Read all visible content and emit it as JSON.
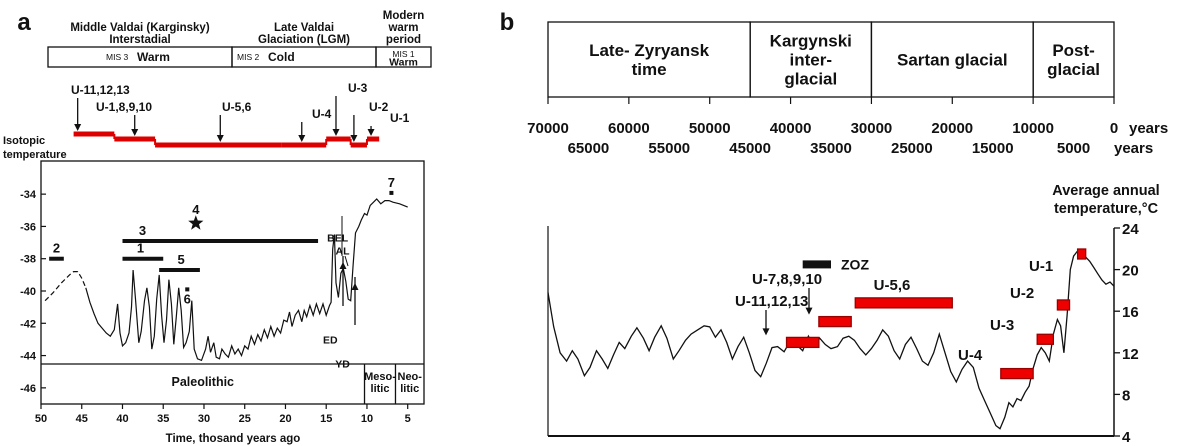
{
  "chart_data": [
    {
      "type": "line",
      "panel_label": "a",
      "periods": [
        {
          "label_lines": [
            "Middle Valdai (Karginsky)",
            "Interstadial"
          ],
          "mis": "MIS 3",
          "climate": "Warm"
        },
        {
          "label_lines": [
            "Late Valdai",
            "Glaciation (LGM)"
          ],
          "mis": "MIS 2",
          "climate": "Cold"
        },
        {
          "label_lines": [
            "Modern",
            "warm",
            "period"
          ],
          "mis": "MIS 1",
          "climate": "Warm"
        }
      ],
      "samples": [
        {
          "label": "U-11,12,13",
          "x": 45.5
        },
        {
          "label": "U-1,8,9,10",
          "x": 38.5
        },
        {
          "label": "U-5,6",
          "x": 28
        },
        {
          "label": "U-4",
          "x": 18
        },
        {
          "label": "U-3",
          "x": 13.8
        },
        {
          "label": "U-2",
          "x": 11.6
        },
        {
          "label": "U-1",
          "x": 9.5
        }
      ],
      "sample_bars": [
        {
          "from": 46,
          "to": 41
        },
        {
          "from": 41,
          "to": 36
        },
        {
          "from": 36,
          "to": 20.5
        },
        {
          "from": 20.5,
          "to": 15
        },
        {
          "from": 15,
          "to": 12
        },
        {
          "from": 12,
          "to": 10
        },
        {
          "from": 10,
          "to": 8.5
        }
      ],
      "ylabel_lines": [
        "Isotopic",
        "temperature"
      ],
      "xlabel": "Time, thosand  years ago",
      "x_ticks": [
        50,
        45,
        40,
        35,
        30,
        25,
        20,
        15,
        10,
        5
      ],
      "y_ticks": [
        -34,
        -36,
        -38,
        -40,
        -42,
        -44,
        -46
      ],
      "xlim": [
        50,
        3
      ],
      "ylim": [
        -47,
        -33
      ],
      "curve_dashed": [
        [
          49.5,
          -40.6
        ],
        [
          48.5,
          -40.1
        ],
        [
          47.5,
          -39.5
        ],
        [
          46.5,
          -39
        ],
        [
          46,
          -38.8
        ],
        [
          45.5,
          -38.8
        ],
        [
          45,
          -39.2
        ],
        [
          44.5,
          -39.8
        ]
      ],
      "curve": [
        [
          44.5,
          -39.8
        ],
        [
          44,
          -40.7
        ],
        [
          43.5,
          -41.4
        ],
        [
          43,
          -42
        ],
        [
          42.5,
          -42.3
        ],
        [
          42,
          -42.6
        ],
        [
          41.5,
          -42.8
        ],
        [
          41,
          -42.4
        ],
        [
          40.6,
          -40.8
        ],
        [
          40.3,
          -42.6
        ],
        [
          40,
          -43.4
        ],
        [
          39.6,
          -43.2
        ],
        [
          39.2,
          -42.6
        ],
        [
          38.9,
          -41
        ],
        [
          38.7,
          -38.7
        ],
        [
          38.4,
          -40.5
        ],
        [
          38,
          -43.2
        ],
        [
          37.7,
          -42.5
        ],
        [
          37.3,
          -40.6
        ],
        [
          37,
          -39.8
        ],
        [
          36.7,
          -41
        ],
        [
          36.4,
          -43.6
        ],
        [
          36.1,
          -42.8
        ],
        [
          35.8,
          -40.5
        ],
        [
          35.5,
          -39
        ],
        [
          35.2,
          -41.5
        ],
        [
          34.9,
          -43.2
        ],
        [
          34.6,
          -41.8
        ],
        [
          34.3,
          -39.3
        ],
        [
          34,
          -40.8
        ],
        [
          33.7,
          -43.3
        ],
        [
          33.4,
          -41.6
        ],
        [
          33.1,
          -39.8
        ],
        [
          32.8,
          -41.2
        ],
        [
          32.5,
          -43.5
        ],
        [
          32.2,
          -43.2
        ],
        [
          31.8,
          -42.5
        ],
        [
          31.5,
          -40.6
        ],
        [
          31.2,
          -43.6
        ],
        [
          30.8,
          -44.2
        ],
        [
          30.3,
          -44.3
        ],
        [
          29.8,
          -43.6
        ],
        [
          29.5,
          -42.8
        ],
        [
          29.2,
          -43.8
        ],
        [
          28.8,
          -43.2
        ],
        [
          28.5,
          -44.1
        ],
        [
          28.1,
          -44.2
        ],
        [
          27.8,
          -43.6
        ],
        [
          27.4,
          -43.9
        ],
        [
          27,
          -44.1
        ],
        [
          26.6,
          -43.4
        ],
        [
          26.2,
          -43.9
        ],
        [
          25.8,
          -43.6
        ],
        [
          25.4,
          -44
        ],
        [
          25,
          -43.4
        ],
        [
          24.6,
          -43.6
        ],
        [
          24.2,
          -42.8
        ],
        [
          23.8,
          -43.3
        ],
        [
          23.4,
          -42.7
        ],
        [
          23,
          -43.1
        ],
        [
          22.6,
          -42.4
        ],
        [
          22.2,
          -42.9
        ],
        [
          21.8,
          -42.2
        ],
        [
          21.4,
          -42.8
        ],
        [
          21,
          -42.3
        ],
        [
          20.6,
          -42.6
        ],
        [
          20.2,
          -41.8
        ],
        [
          19.8,
          -41.9
        ],
        [
          19.5,
          -41.3
        ],
        [
          19.2,
          -42.2
        ],
        [
          18.8,
          -41.5
        ],
        [
          18.4,
          -41.2
        ],
        [
          18,
          -41.9
        ],
        [
          17.7,
          -41.2
        ],
        [
          17.4,
          -41.6
        ],
        [
          17,
          -40.9
        ],
        [
          16.6,
          -41.5
        ],
        [
          16.2,
          -40.8
        ],
        [
          15.8,
          -41.4
        ],
        [
          15.4,
          -40.8
        ],
        [
          15,
          -41.5
        ],
        [
          14.6,
          -40.9
        ],
        [
          14.4,
          -40.7
        ],
        [
          14.2,
          -37.4
        ],
        [
          14,
          -36.5
        ],
        [
          13.8,
          -39.5
        ],
        [
          13.5,
          -40.4
        ],
        [
          13.2,
          -38.9
        ],
        [
          12.9,
          -38.6
        ],
        [
          12.6,
          -39.4
        ],
        [
          12.3,
          -40.5
        ],
        [
          12,
          -40.6
        ],
        [
          11.7,
          -38.4
        ],
        [
          11.4,
          -36.4
        ],
        [
          11,
          -36
        ],
        [
          10.7,
          -35.6
        ],
        [
          10.3,
          -35.2
        ],
        [
          10,
          -35.3
        ],
        [
          9.6,
          -34.7
        ],
        [
          9.2,
          -34.5
        ],
        [
          8.8,
          -34.3
        ],
        [
          8.3,
          -34.6
        ],
        [
          7.8,
          -34.4
        ],
        [
          7.3,
          -34.4
        ],
        [
          6.8,
          -34.5
        ],
        [
          6,
          -34.6
        ],
        [
          5,
          -34.8
        ]
      ],
      "horizontal_bars": [
        {
          "label": "2",
          "from": 49,
          "to": 47.2,
          "y": -38
        },
        {
          "label": "1",
          "from": 40,
          "to": 35,
          "y": -38
        },
        {
          "label": "3",
          "from": 40,
          "to": 16,
          "y": -36.9
        },
        {
          "label": "5",
          "from": 35.5,
          "to": 30.5,
          "y": -38.7
        },
        {
          "label": "6",
          "from": 32.3,
          "to": 31.8,
          "y": -39.9
        }
      ],
      "star": {
        "label": "4",
        "x": 31,
        "y": -35.8
      },
      "point_7": {
        "label": "7",
        "x": 7,
        "y": -33.8
      },
      "annotations": [
        {
          "text": "BEL",
          "x": 13.6,
          "y": -36.7
        },
        {
          "text": "AL",
          "x": 13,
          "y": -37.5
        },
        {
          "text": "ED",
          "x": 14.5,
          "y": -43
        },
        {
          "text": "YD",
          "x": 13,
          "y": -44.5
        }
      ],
      "cultural_periods": [
        {
          "label_lines": [
            "Paleolithic"
          ],
          "from": 50,
          "to": 10.3
        },
        {
          "label_lines": [
            "Meso-",
            "litic"
          ],
          "from": 10.3,
          "to": 6.5
        },
        {
          "label_lines": [
            "Neo-",
            "litic"
          ],
          "from": 6.5,
          "to": 3
        }
      ]
    },
    {
      "type": "line",
      "panel_label": "b",
      "periods": [
        {
          "label_lines": [
            "Late- Zyryansk",
            "time"
          ],
          "from": 70000,
          "to": 45000
        },
        {
          "label_lines": [
            "Kargynski",
            "inter-",
            "glacial"
          ],
          "from": 45000,
          "to": 30000
        },
        {
          "label_lines": [
            "Sartan  glacial"
          ],
          "from": 30000,
          "to": 10000
        },
        {
          "label_lines": [
            "Post-",
            "glacial"
          ],
          "from": 10000,
          "to": 0
        }
      ],
      "x_ticks_major": [
        70000,
        60000,
        50000,
        40000,
        30000,
        20000,
        10000,
        0
      ],
      "x_ticks_minor": [
        65000,
        55000,
        45000,
        35000,
        25000,
        15000,
        5000
      ],
      "x_unit": "years",
      "xlim": [
        70000,
        0
      ],
      "ylabel_lines": [
        "Average annual",
        "temperature,°C"
      ],
      "y_ticks": [
        4,
        8,
        12,
        16,
        20,
        24
      ],
      "ylim": [
        4,
        24
      ],
      "curve": [
        [
          70000,
          17.8
        ],
        [
          69300,
          14.5
        ],
        [
          68500,
          12
        ],
        [
          67700,
          11.2
        ],
        [
          67000,
          12.2
        ],
        [
          66300,
          11.4
        ],
        [
          65500,
          9.8
        ],
        [
          64800,
          10.6
        ],
        [
          64000,
          12.2
        ],
        [
          63300,
          11.4
        ],
        [
          62600,
          10.5
        ],
        [
          61900,
          11.8
        ],
        [
          61200,
          13
        ],
        [
          60500,
          12.4
        ],
        [
          59700,
          13.6
        ],
        [
          59000,
          14.4
        ],
        [
          58200,
          13.4
        ],
        [
          57500,
          12.2
        ],
        [
          56800,
          13.5
        ],
        [
          56000,
          14.6
        ],
        [
          55300,
          13.4
        ],
        [
          54500,
          11.4
        ],
        [
          53800,
          12.2
        ],
        [
          53000,
          13.2
        ],
        [
          52300,
          13.8
        ],
        [
          51500,
          14.2
        ],
        [
          50700,
          14.6
        ],
        [
          50000,
          14.5
        ],
        [
          49300,
          13.5
        ],
        [
          48600,
          14.2
        ],
        [
          47900,
          13
        ],
        [
          47200,
          11.4
        ],
        [
          46500,
          12.6
        ],
        [
          45800,
          13.5
        ],
        [
          45100,
          12
        ],
        [
          44400,
          10.3
        ],
        [
          43700,
          9.7
        ],
        [
          43000,
          11
        ],
        [
          42300,
          12.5
        ],
        [
          41600,
          12.6
        ],
        [
          40800,
          12.1
        ],
        [
          40000,
          13.2
        ],
        [
          39300,
          12.8
        ],
        [
          38500,
          12.2
        ],
        [
          37800,
          13.6
        ],
        [
          37100,
          12.6
        ],
        [
          36400,
          13.4
        ],
        [
          35700,
          12.8
        ],
        [
          35000,
          12.4
        ],
        [
          34200,
          12.6
        ],
        [
          33500,
          13.4
        ],
        [
          32800,
          13.6
        ],
        [
          32100,
          13.2
        ],
        [
          31400,
          12.4
        ],
        [
          30700,
          11.8
        ],
        [
          30000,
          12.4
        ],
        [
          29300,
          13.2
        ],
        [
          28600,
          14.2
        ],
        [
          27900,
          13.6
        ],
        [
          27200,
          12.2
        ],
        [
          26500,
          11.4
        ],
        [
          25800,
          12.8
        ],
        [
          25100,
          13.5
        ],
        [
          24400,
          12.4
        ],
        [
          23700,
          11.2
        ],
        [
          23000,
          10.8
        ],
        [
          22300,
          12
        ],
        [
          21600,
          13.8
        ],
        [
          20900,
          12
        ],
        [
          20200,
          10.2
        ],
        [
          19500,
          9.2
        ],
        [
          18800,
          10.4
        ],
        [
          18100,
          11.2
        ],
        [
          17400,
          10.6
        ],
        [
          16700,
          8.6
        ],
        [
          16000,
          7.4
        ],
        [
          15300,
          6.2
        ],
        [
          14600,
          5
        ],
        [
          14100,
          4.7
        ],
        [
          13500,
          5.8
        ],
        [
          13000,
          7.2
        ],
        [
          12500,
          6.8
        ],
        [
          12000,
          7.6
        ],
        [
          11500,
          7.4
        ],
        [
          11000,
          8.2
        ],
        [
          10500,
          8.8
        ],
        [
          10000,
          10.5
        ],
        [
          9500,
          11.8
        ],
        [
          9000,
          12.5
        ],
        [
          8500,
          12
        ],
        [
          8000,
          11.2
        ],
        [
          7500,
          13.8
        ],
        [
          7000,
          15.2
        ],
        [
          6600,
          14.6
        ],
        [
          6200,
          12
        ],
        [
          5800,
          15.6
        ],
        [
          5400,
          20
        ],
        [
          5000,
          21.3
        ],
        [
          4500,
          21.8
        ],
        [
          4000,
          21.6
        ],
        [
          3500,
          21.2
        ],
        [
          3000,
          20.8
        ],
        [
          2500,
          20.2
        ],
        [
          2000,
          19.6
        ],
        [
          1500,
          19
        ],
        [
          1000,
          18.6
        ],
        [
          500,
          18.8
        ],
        [
          0,
          18.4
        ]
      ],
      "zoz": {
        "label": "ZOZ",
        "from": 38500,
        "to": 35000,
        "y": 20.5
      },
      "sample_bars": [
        {
          "label": "U-11,12,13",
          "from": 40500,
          "to": 36500,
          "y": 13
        },
        {
          "label": "U-7,8,9,10",
          "from": 36500,
          "to": 32500,
          "y": 15
        },
        {
          "label": "U-5,6",
          "from": 32000,
          "to": 20000,
          "y": 16.8
        },
        {
          "label": "U-4",
          "from": 14000,
          "to": 10000,
          "y": 10
        },
        {
          "label": "U-3",
          "from": 9500,
          "to": 7500,
          "y": 13.3
        },
        {
          "label": "U-2",
          "from": 7000,
          "to": 5500,
          "y": 16.6
        },
        {
          "label": "U-1",
          "from": 4500,
          "to": 3500,
          "y": 21.5
        }
      ]
    }
  ]
}
